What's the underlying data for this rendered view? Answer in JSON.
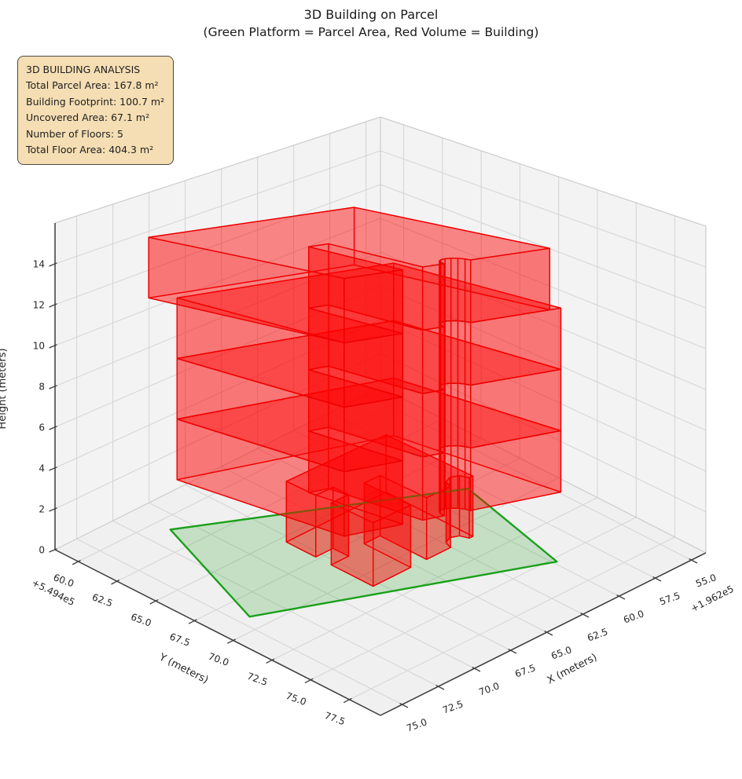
{
  "chart_data": {
    "type": "3d_building_plot",
    "title": "3D Building on Parcel",
    "subtitle": "(Green Platform = Parcel Area, Red Volume = Building)",
    "info_box": {
      "title": "3D BUILDING ANALYSIS",
      "lines": [
        "Total Parcel Area: 167.8 m²",
        "Building Footprint: 100.7 m²",
        "Uncovered Area: 67.1 m²",
        "Number of Floors: 5",
        "Total Floor Area: 404.3 m²"
      ]
    },
    "stats": {
      "total_parcel_area_m2": 167.8,
      "building_footprint_m2": 100.7,
      "uncovered_area_m2": 67.1,
      "number_of_floors": 5,
      "total_floor_area_m2": 404.3
    },
    "axes": {
      "x": {
        "label": "X (meters)",
        "offset_label": "+1.962e5",
        "tick_labels": [
          "55.0",
          "57.5",
          "60.0",
          "62.5",
          "65.0",
          "67.5",
          "70.0",
          "72.5",
          "75.0"
        ],
        "tick_vals": [
          55.0,
          57.5,
          60.0,
          62.5,
          65.0,
          67.5,
          70.0,
          72.5,
          75.0
        ],
        "lim": [
          54.0,
          76.5
        ]
      },
      "y": {
        "label": "Y (meters)",
        "offset_label": "+5.494e5",
        "tick_labels": [
          "60.0",
          "62.5",
          "65.0",
          "67.5",
          "70.0",
          "72.5",
          "75.0",
          "77.5"
        ],
        "tick_vals": [
          60.0,
          62.5,
          65.0,
          67.5,
          70.0,
          72.5,
          75.0,
          77.5
        ],
        "lim": [
          58.5,
          79.5
        ]
      },
      "z": {
        "label": "Height (meters)",
        "tick_labels": [
          "0",
          "2",
          "4",
          "6",
          "8",
          "10",
          "12",
          "14"
        ],
        "tick_vals": [
          0,
          2,
          4,
          6,
          8,
          10,
          12,
          14
        ],
        "lim": [
          0,
          16
        ]
      },
      "grid": true
    },
    "colors": {
      "pane_wall": "#f3f3f3",
      "pane_floor": "#f0f0f0",
      "grid_line": "#d6d6d6",
      "pane_edge": "#cccccc",
      "axis_line": "#3a3a3a",
      "tick_text": "#262626",
      "parcel_edge": "#1aa01a",
      "parcel_fill": "rgba(0,150,0,0.18)",
      "building_edge": "#ee0000",
      "building_side_fill": "rgba(255,0,0,0.30)",
      "building_top_fill": "rgba(255,0,0,0.22)",
      "building_bottom_fill": "rgba(255,0,0,0.22)"
    },
    "parcel": {
      "z": 0,
      "polygon": [
        [
          71.1,
          60.9
        ],
        [
          74.3,
          69.0
        ],
        [
          59.8,
          75.3
        ],
        [
          57.9,
          67.8
        ]
      ]
    },
    "building": {
      "floor_height": 3,
      "blocks": [
        {
          "name": "ground-floor",
          "z": [
            0,
            3
          ],
          "slabs": 1,
          "footprint": [
            [
              67.9,
              65.4
            ],
            [
              67.9,
              67.3
            ],
            [
              66.7,
              67.3
            ],
            [
              66.7,
              68.3
            ],
            [
              67.9,
              68.3
            ],
            [
              67.9,
              71.0
            ],
            [
              65.3,
              71.0
            ],
            [
              65.3,
              68.0
            ],
            [
              64.2,
              68.0
            ],
            [
              64.2,
              71.0
            ],
            [
              62.55,
              71.0
            ],
            [
              62.36,
              70.54
            ],
            [
              61.9,
              70.35
            ],
            [
              61.44,
              70.54
            ],
            [
              61.25,
              71.0
            ],
            [
              61.0,
              71.0
            ],
            [
              61.0,
              65.4
            ]
          ]
        },
        {
          "name": "floors-2-4",
          "z": [
            3,
            12
          ],
          "slabs": 3,
          "footprint": [
            [
              71.6,
              61.8
            ],
            [
              69.9,
              71.0
            ],
            [
              66.98,
              72.05
            ],
            [
              67.94,
              66.88
            ],
            [
              66.95,
              67.24
            ],
            [
              65.99,
              72.41
            ],
            [
              64.91,
              72.8
            ],
            [
              64.91,
              72.56
            ],
            [
              64.81,
              72.39
            ],
            [
              64.63,
              72.31
            ],
            [
              64.38,
              72.35
            ],
            [
              64.12,
              72.5
            ],
            [
              63.88,
              72.72
            ],
            [
              63.7,
              73.01
            ],
            [
              63.6,
              73.28
            ],
            [
              59.1,
              74.9
            ],
            [
              60.8,
              65.7
            ]
          ]
        },
        {
          "name": "floor-5",
          "z": [
            12,
            15
          ],
          "slabs": 1,
          "footprint": [
            [
              72.6,
              60.9
            ],
            [
              69.9,
              71.0
            ],
            [
              66.98,
              72.05
            ],
            [
              67.94,
              66.88
            ],
            [
              66.95,
              67.24
            ],
            [
              65.99,
              72.41
            ],
            [
              64.91,
              72.8
            ],
            [
              64.91,
              72.56
            ],
            [
              64.81,
              72.39
            ],
            [
              64.63,
              72.31
            ],
            [
              64.38,
              72.35
            ],
            [
              64.12,
              72.5
            ],
            [
              63.88,
              72.72
            ],
            [
              63.7,
              73.01
            ],
            [
              63.6,
              73.28
            ],
            [
              59.65,
              74.7
            ],
            [
              62.35,
              64.6
            ]
          ]
        }
      ]
    }
  }
}
